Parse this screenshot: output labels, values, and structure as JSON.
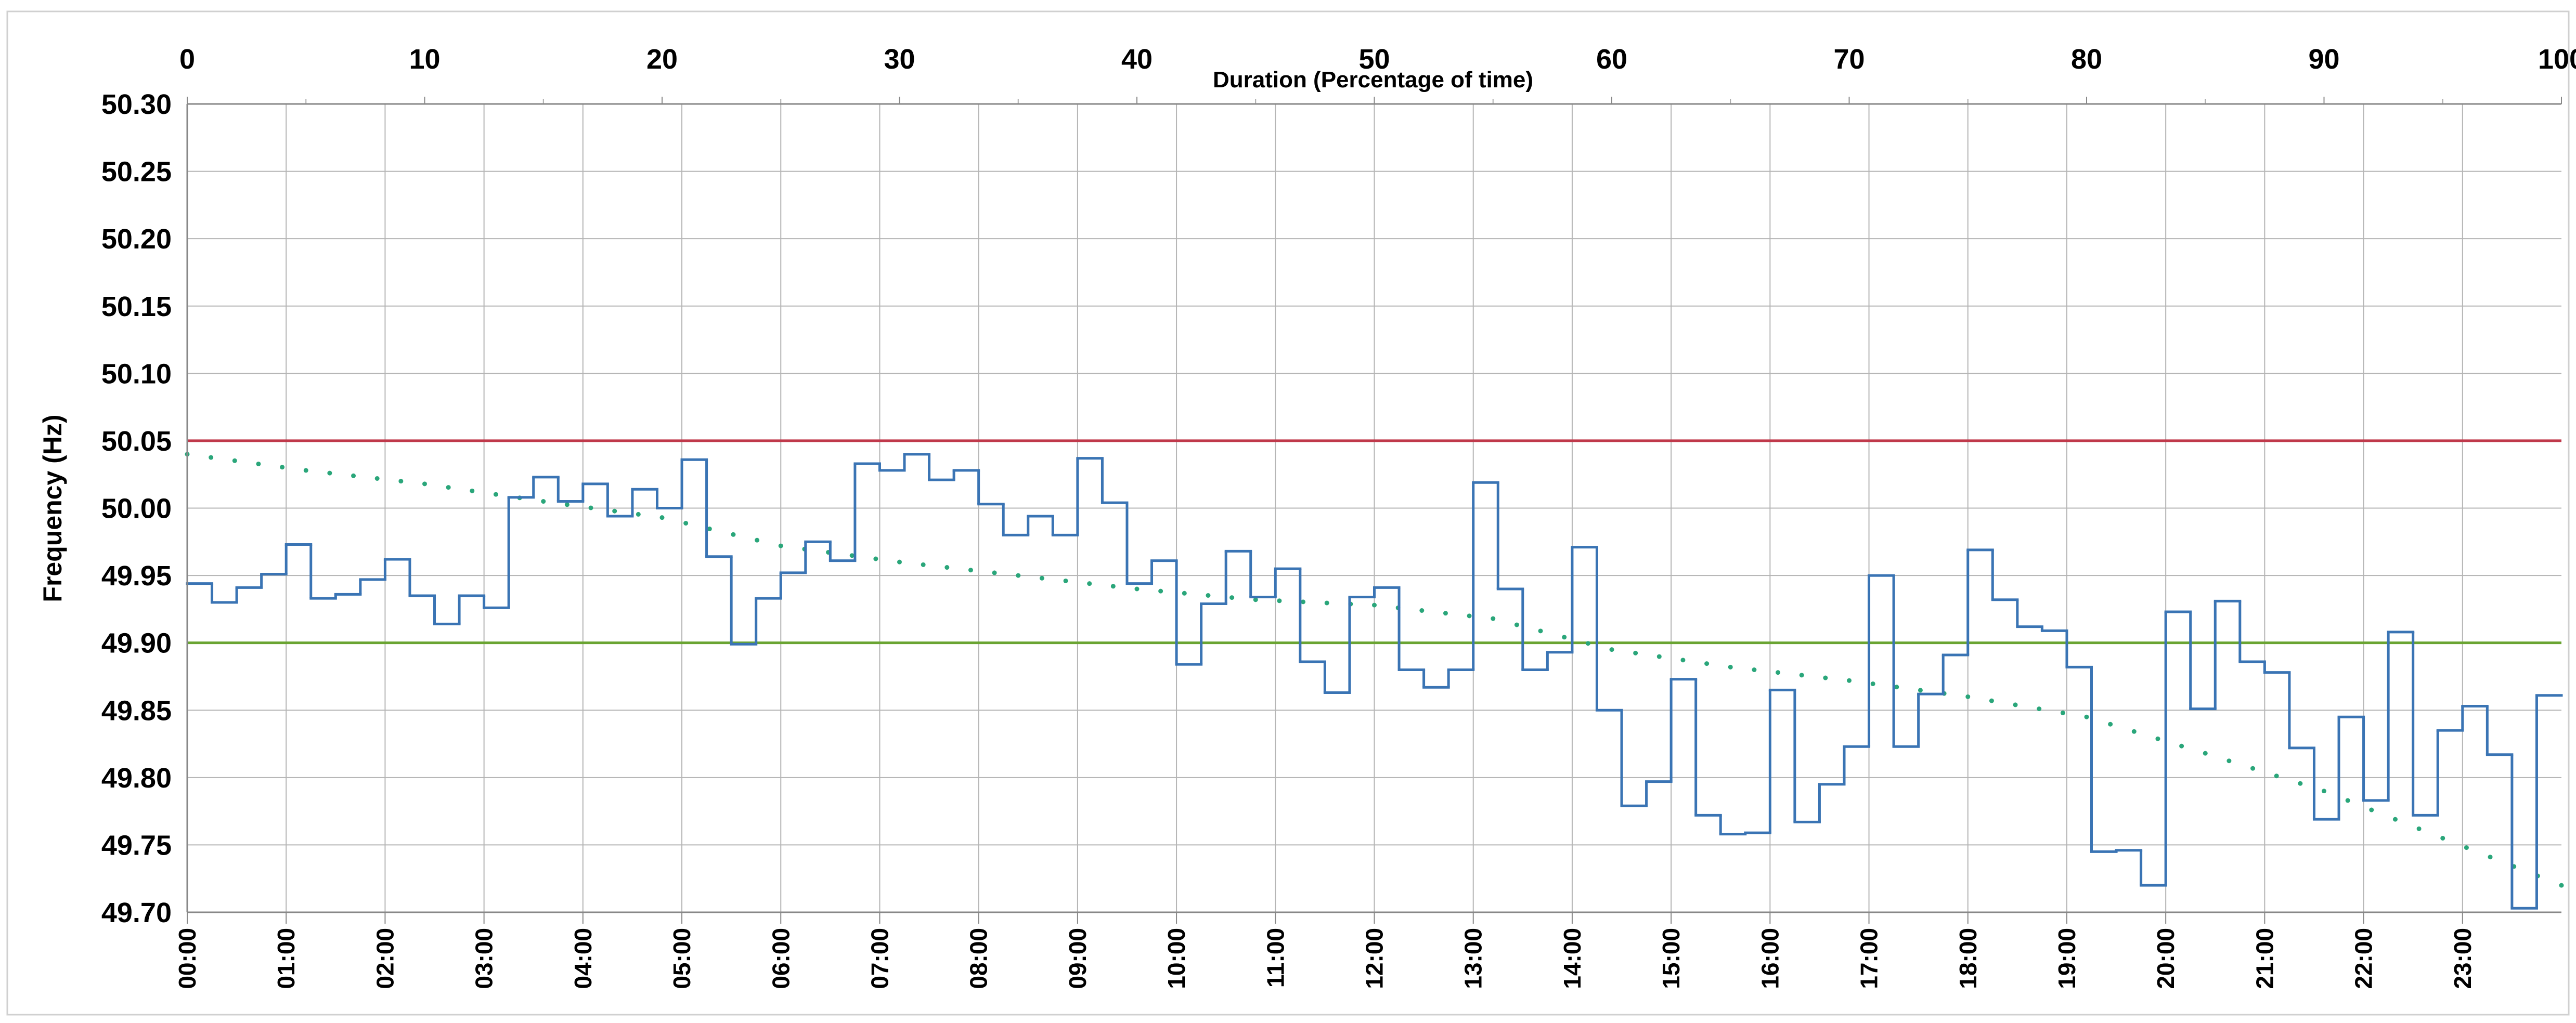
{
  "chart_data": {
    "type": "line",
    "title": "",
    "xlabel_top": "Duration (Percentage of time)",
    "ylabel": "Frequency (Hz)",
    "ylim": [
      49.7,
      50.3
    ],
    "y_ticks": [
      "50.30",
      "50.25",
      "50.20",
      "50.15",
      "50.10",
      "50.05",
      "50.00",
      "49.95",
      "49.90",
      "49.85",
      "49.80",
      "49.75",
      "49.70"
    ],
    "top_ticks": [
      "0",
      "10",
      "20",
      "30",
      "40",
      "50",
      "60",
      "70",
      "80",
      "90",
      "100"
    ],
    "time_ticks": [
      "00:00",
      "01:00",
      "02:00",
      "03:00",
      "04:00",
      "05:00",
      "06:00",
      "07:00",
      "08:00",
      "09:00",
      "10:00",
      "11:00",
      "12:00",
      "13:00",
      "14:00",
      "15:00",
      "16:00",
      "17:00",
      "18:00",
      "19:00",
      "20:00",
      "21:00",
      "22:00",
      "23:00"
    ],
    "grid": true,
    "colors": {
      "frequency": "#3a74b4",
      "duration": "#2aa67a",
      "upper_limit": "#c0394b",
      "lower_limit": "#6aa432",
      "grid": "#b5b5b5"
    },
    "reference_lines": [
      {
        "value": 50.05,
        "color": "#c0394b"
      },
      {
        "value": 49.9,
        "color": "#6aa432"
      }
    ],
    "series": [
      {
        "style": "step",
        "color": "#3a74b4",
        "x_unit": "hours from 00:00, 15-minute blocks",
        "values": [
          49.944,
          49.93,
          49.941,
          49.951,
          49.973,
          49.933,
          49.936,
          49.947,
          49.962,
          49.935,
          49.914,
          49.935,
          49.926,
          50.008,
          50.023,
          50.005,
          50.018,
          49.994,
          50.014,
          50.0,
          50.036,
          49.964,
          49.899,
          49.933,
          49.952,
          49.975,
          49.961,
          50.033,
          50.028,
          50.04,
          50.021,
          50.028,
          50.003,
          49.98,
          49.994,
          49.98,
          50.037,
          50.004,
          49.944,
          49.961,
          49.884,
          49.929,
          49.968,
          49.934,
          49.955,
          49.886,
          49.863,
          49.934,
          49.941,
          49.88,
          49.867,
          49.88,
          50.019,
          49.94,
          49.88,
          49.893,
          49.971,
          49.85,
          49.779,
          49.797,
          49.873,
          49.772,
          49.758,
          49.759,
          49.865,
          49.767,
          49.795,
          49.823,
          49.95,
          49.823,
          49.862,
          49.891,
          49.969,
          49.932,
          49.912,
          49.909,
          49.882,
          49.745,
          49.746,
          49.72,
          49.923,
          49.851,
          49.931,
          49.886,
          49.878,
          49.822,
          49.769,
          49.845,
          49.783,
          49.908,
          49.772,
          49.835,
          49.853,
          49.817,
          49.703,
          49.861
        ]
      },
      {
        "style": "dotted",
        "color": "#2aa67a",
        "x_unit": "percentage of time",
        "x": [
          0,
          5,
          10,
          15,
          20,
          25,
          30,
          35,
          40,
          45,
          50,
          55,
          60,
          65,
          70,
          75,
          80,
          85,
          90,
          95,
          100
        ],
        "values": [
          50.04,
          50.028,
          50.018,
          50.005,
          49.993,
          49.972,
          49.96,
          49.95,
          49.94,
          49.932,
          49.928,
          49.918,
          49.895,
          49.882,
          49.872,
          49.86,
          49.845,
          49.818,
          49.79,
          49.755,
          49.72
        ]
      }
    ]
  }
}
